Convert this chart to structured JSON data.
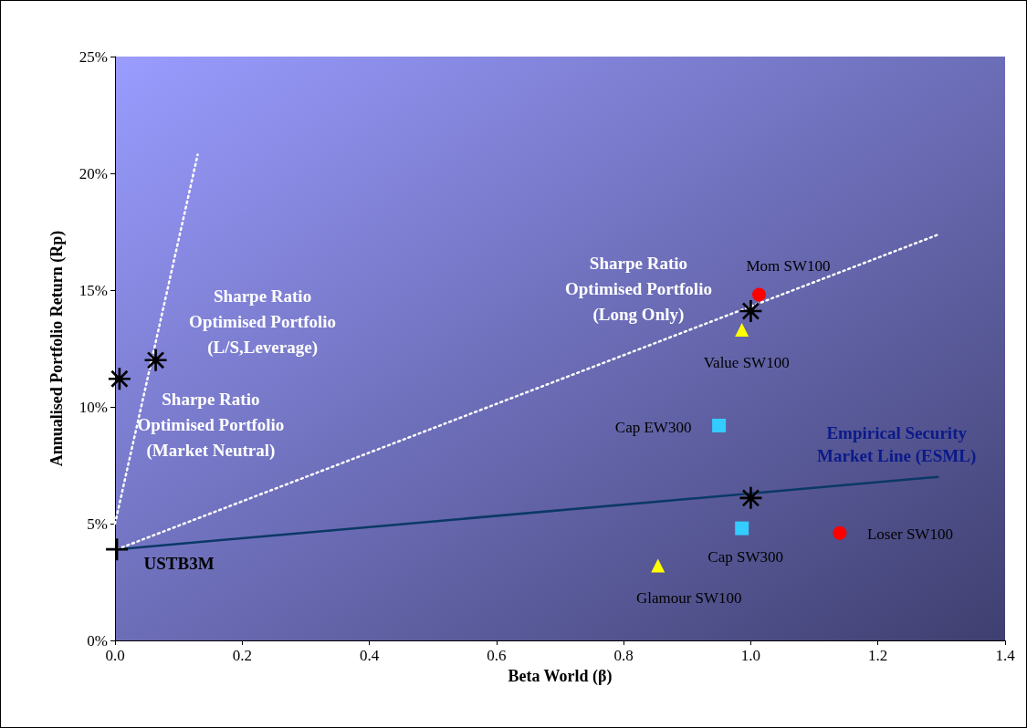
{
  "chart_data": {
    "type": "scatter",
    "xlabel": "Beta World (β)",
    "ylabel": "Annualised Portfolio Return (Rp)",
    "xlim": [
      0,
      1.4
    ],
    "xticks": [
      {
        "value": 0,
        "label": "0.0"
      },
      {
        "value": 0.2,
        "label": "0.2"
      },
      {
        "value": 0.4,
        "label": "0.4"
      },
      {
        "value": 0.6,
        "label": "0.6"
      },
      {
        "value": 0.8,
        "label": "0.8"
      },
      {
        "value": 1,
        "label": "1.0"
      },
      {
        "value": 1.2,
        "label": "1.2"
      },
      {
        "value": 1.4,
        "label": "1.4"
      }
    ],
    "ylim": [
      0,
      25
    ],
    "yticks": [
      {
        "value": 0,
        "label": "0%"
      },
      {
        "value": 5,
        "label": "5%"
      },
      {
        "value": 10,
        "label": "10%"
      },
      {
        "value": 15,
        "label": "15%"
      },
      {
        "value": 20,
        "label": "20%"
      },
      {
        "value": 25,
        "label": "25%"
      }
    ],
    "grid": false,
    "annotations": [
      {
        "text": "Empirical Security\nMarket Line (ESML)",
        "x": 1.294,
        "y": 7.0
      },
      {
        "text": "USTB3M",
        "x": 0.003,
        "y": 3.9
      },
      {
        "text": "Sharpe Ratio\nOptimised Portfolio\n(Market Neutral)",
        "x": 0.007,
        "y": 11.2
      },
      {
        "text": "Sharpe Ratio\nOptimised Portfolio\n(L/S,Leverage)",
        "x": 0.064,
        "y": 12.0
      },
      {
        "text": "Sharpe Ratio\nOptimised Portfolio\n(Long Only)",
        "x": 1.0,
        "y": 14.1
      },
      {
        "text": "Mom SW100",
        "x": 1.013,
        "y": 14.8
      },
      {
        "text": "Value SW100",
        "x": 0.986,
        "y": 13.3
      },
      {
        "text": "Cap EW300",
        "x": 0.95,
        "y": 9.2
      },
      {
        "text": "Cap SW300",
        "x": 0.986,
        "y": 4.8
      },
      {
        "text": "Glamour SW100",
        "x": 0.854,
        "y": 3.2
      },
      {
        "text": "Loser SW100",
        "x": 1.14,
        "y": 4.6
      }
    ],
    "series": [
      {
        "type": "line",
        "color": "#0b3866",
        "line_style": "solid",
        "marker": "none",
        "x": [
          0.003,
          1.294
        ],
        "values": [
          3.9,
          7.0
        ]
      },
      {
        "type": "line",
        "color": "#ffffff",
        "line_style": "dotted",
        "marker": "none",
        "x": [
          0.003,
          1.297
        ],
        "values": [
          3.9,
          17.4
        ]
      },
      {
        "type": "line",
        "color": "#ffffff",
        "line_style": "dotted",
        "marker": "none",
        "x": [
          0,
          0.13
        ],
        "values": [
          5.0,
          20.8
        ]
      },
      {
        "color": "#000000",
        "x": [
          0.003
        ],
        "values": [
          3.9
        ]
      },
      {
        "color": "#000000",
        "x": [
          0.007,
          0.064,
          1.0,
          1.0
        ],
        "values": [
          11.2,
          12.0,
          14.1,
          6.1
        ]
      },
      {
        "color": "#ff0000",
        "marker": "circle",
        "x": [
          1.013,
          1.14
        ],
        "values": [
          14.8,
          4.6
        ]
      },
      {
        "color": "#ffff00",
        "marker": "triangle",
        "x": [
          0.986,
          0.854
        ],
        "values": [
          13.3,
          3.2
        ]
      },
      {
        "color": "#33ccff",
        "marker": "square",
        "x": [
          0.95,
          0.986
        ],
        "values": [
          9.2,
          4.8
        ]
      }
    ]
  }
}
